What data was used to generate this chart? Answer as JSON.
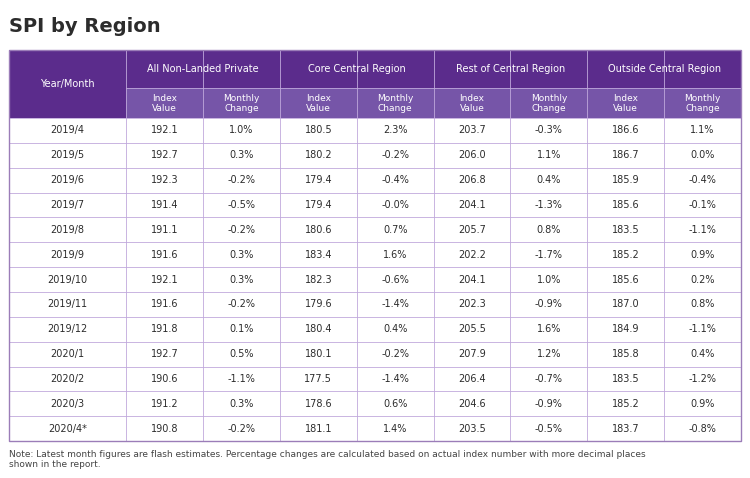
{
  "title": "SPI by Region",
  "note": "Note: Latest month figures are flash estimates. Percentage changes are calculated based on actual index number with more decimal places\nshown in the report.",
  "header_bg": "#5b2c8c",
  "header_text": "#ffffff",
  "subheader_bg": "#7655a8",
  "subheader_text": "#ffffff",
  "row_bg": "#ffffff",
  "border_color": "#c0a8dc",
  "outer_border": "#9b7db8",
  "text_color": "#2c2c2c",
  "col_groups": [
    {
      "label": "All Non-Landed Private"
    },
    {
      "label": "Core Central Region"
    },
    {
      "label": "Rest of Central Region"
    },
    {
      "label": "Outside Central Region"
    }
  ],
  "col_subheaders": [
    "Index\nValue",
    "Monthly\nChange",
    "Index\nValue",
    "Monthly\nChange",
    "Index\nValue",
    "Monthly\nChange",
    "Index\nValue",
    "Monthly\nChange"
  ],
  "rows": [
    [
      "2019/4",
      "192.1",
      "1.0%",
      "180.5",
      "2.3%",
      "203.7",
      "-0.3%",
      "186.6",
      "1.1%"
    ],
    [
      "2019/5",
      "192.7",
      "0.3%",
      "180.2",
      "-0.2%",
      "206.0",
      "1.1%",
      "186.7",
      "0.0%"
    ],
    [
      "2019/6",
      "192.3",
      "-0.2%",
      "179.4",
      "-0.4%",
      "206.8",
      "0.4%",
      "185.9",
      "-0.4%"
    ],
    [
      "2019/7",
      "191.4",
      "-0.5%",
      "179.4",
      "-0.0%",
      "204.1",
      "-1.3%",
      "185.6",
      "-0.1%"
    ],
    [
      "2019/8",
      "191.1",
      "-0.2%",
      "180.6",
      "0.7%",
      "205.7",
      "0.8%",
      "183.5",
      "-1.1%"
    ],
    [
      "2019/9",
      "191.6",
      "0.3%",
      "183.4",
      "1.6%",
      "202.2",
      "-1.7%",
      "185.2",
      "0.9%"
    ],
    [
      "2019/10",
      "192.1",
      "0.3%",
      "182.3",
      "-0.6%",
      "204.1",
      "1.0%",
      "185.6",
      "0.2%"
    ],
    [
      "2019/11",
      "191.6",
      "-0.2%",
      "179.6",
      "-1.4%",
      "202.3",
      "-0.9%",
      "187.0",
      "0.8%"
    ],
    [
      "2019/12",
      "191.8",
      "0.1%",
      "180.4",
      "0.4%",
      "205.5",
      "1.6%",
      "184.9",
      "-1.1%"
    ],
    [
      "2020/1",
      "192.7",
      "0.5%",
      "180.1",
      "-0.2%",
      "207.9",
      "1.2%",
      "185.8",
      "0.4%"
    ],
    [
      "2020/2",
      "190.6",
      "-1.1%",
      "177.5",
      "-1.4%",
      "206.4",
      "-0.7%",
      "183.5",
      "-1.2%"
    ],
    [
      "2020/3",
      "191.2",
      "0.3%",
      "178.6",
      "0.6%",
      "204.6",
      "-0.9%",
      "185.2",
      "0.9%"
    ],
    [
      "2020/4*",
      "190.8",
      "-0.2%",
      "181.1",
      "1.4%",
      "203.5",
      "-0.5%",
      "183.7",
      "-0.8%"
    ]
  ],
  "col_widths_rel": [
    1.25,
    0.82,
    0.82,
    0.82,
    0.82,
    0.82,
    0.82,
    0.82,
    0.82
  ],
  "figsize": [
    7.5,
    4.78
  ],
  "dpi": 100,
  "title_fontsize": 14,
  "header_fontsize": 7,
  "subheader_fontsize": 6.5,
  "data_fontsize": 7,
  "note_fontsize": 6.5
}
